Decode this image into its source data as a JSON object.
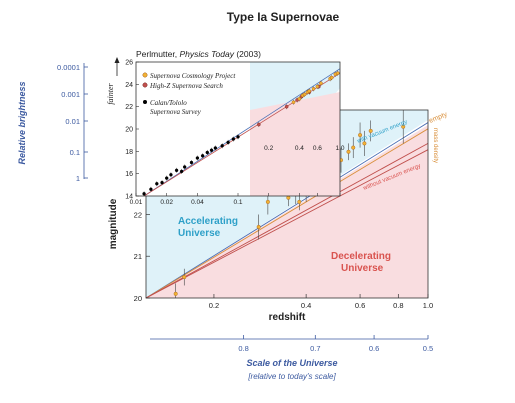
{
  "title": "Type Ia Supernovae",
  "colors": {
    "accelerating_fill": "#dff2f9",
    "decelerating_fill": "#f9dde0",
    "blue_line": "#4a6fb5",
    "red_line": "#c0504d",
    "orange_line": "#d98f3a",
    "label_blue": "#3c5aa0",
    "label_teal": "#2ea0c8",
    "label_red": "#d9534f",
    "point_fill": "#f2b233",
    "point_stroke": "#a05a20"
  },
  "left_scale": {
    "title": "Relative brightness",
    "ticks": [
      "0.0001",
      "0.001",
      "0.01",
      "0.1",
      "1"
    ]
  },
  "bottom_scale": {
    "title": "Scale of the Universe",
    "subtitle": "[relative to today's scale]",
    "ticks": [
      "0.8",
      "0.7",
      "0.6",
      "0.5"
    ]
  },
  "chart_data": [
    {
      "type": "scatter",
      "xlabel": "redshift",
      "ylabel": "magnitude",
      "xscale": "log",
      "xlim": [
        0.12,
        1.0
      ],
      "ylim": [
        20,
        24.5
      ],
      "xticks": [
        "0.2",
        "0.4",
        "0.6",
        "0.8",
        "1.0"
      ],
      "yticks": [
        "20",
        "21",
        "22"
      ],
      "region_labels": {
        "accelerating": [
          "Accelerating",
          "Universe"
        ],
        "decelerating": [
          "Decelerating",
          "Universe"
        ]
      },
      "line_labels": {
        "with": "with vacuum energy",
        "without": "without vacuum energy",
        "empty": "empty",
        "mass": "mass density"
      },
      "lines": [
        {
          "role": "with",
          "points": [
            [
              0.12,
              20.0
            ],
            [
              1.0,
              24.2
            ]
          ]
        },
        {
          "role": "empty",
          "points": [
            [
              0.12,
              20.0
            ],
            [
              1.0,
              24.05
            ]
          ]
        },
        {
          "role": "without",
          "points": [
            [
              0.12,
              20.0
            ],
            [
              1.0,
              23.7
            ]
          ]
        },
        {
          "role": "without2",
          "points": [
            [
              0.12,
              20.0
            ],
            [
              1.0,
              23.55
            ]
          ]
        }
      ],
      "series": [
        {
          "points": [
            [
              0.15,
              20.1,
              0.25
            ],
            [
              0.16,
              20.5,
              0.2
            ],
            [
              0.28,
              21.7,
              0.3
            ],
            [
              0.3,
              22.3,
              0.3
            ],
            [
              0.35,
              22.4,
              0.2
            ],
            [
              0.37,
              22.5,
              0.25
            ],
            [
              0.38,
              22.3,
              0.2
            ],
            [
              0.4,
              22.6,
              0.3
            ],
            [
              0.42,
              22.9,
              0.25
            ],
            [
              0.43,
              23.0,
              0.3
            ],
            [
              0.45,
              22.8,
              0.3
            ],
            [
              0.45,
              23.2,
              0.25
            ],
            [
              0.48,
              23.1,
              0.2
            ],
            [
              0.5,
              23.4,
              0.25
            ],
            [
              0.52,
              23.3,
              0.3
            ],
            [
              0.55,
              23.5,
              0.2
            ],
            [
              0.57,
              23.6,
              0.25
            ],
            [
              0.6,
              23.9,
              0.3
            ],
            [
              0.62,
              23.7,
              0.3
            ],
            [
              0.65,
              24.0,
              0.25
            ],
            [
              0.83,
              24.1,
              0.4
            ]
          ]
        }
      ]
    },
    {
      "type": "scatter",
      "title": "Perlmutter, Physics Today (2003)",
      "ylabel": "fainter",
      "xscale": "log",
      "xlim": [
        0.01,
        1.0
      ],
      "ylim": [
        14,
        26
      ],
      "xticks": [
        "0.01",
        "0.02",
        "0.04",
        "0.1",
        "0.2",
        "0.4",
        "0.6",
        "1.0"
      ],
      "yticks": [
        "14",
        "16",
        "18",
        "20",
        "22",
        "24",
        "26"
      ],
      "legend": [
        {
          "label": "Supernova Cosmology Project",
          "color": "#f2b233"
        },
        {
          "label": "High-Z Supernova Search",
          "color": "#c0504d"
        },
        {
          "label": "Calan/Tololo Supernova Survey",
          "color": "#000000"
        }
      ],
      "series": [
        {
          "name": "Calan/Tololo Supernova Survey",
          "points": [
            [
              0.012,
              14.2
            ],
            [
              0.014,
              14.6
            ],
            [
              0.016,
              15.1
            ],
            [
              0.018,
              15.2
            ],
            [
              0.02,
              15.6
            ],
            [
              0.022,
              15.9
            ],
            [
              0.025,
              16.3
            ],
            [
              0.028,
              16.2
            ],
            [
              0.03,
              16.6
            ],
            [
              0.035,
              17.0
            ],
            [
              0.04,
              17.4
            ],
            [
              0.045,
              17.6
            ],
            [
              0.05,
              17.9
            ],
            [
              0.055,
              18.1
            ],
            [
              0.06,
              18.3
            ],
            [
              0.07,
              18.5
            ],
            [
              0.08,
              18.8
            ],
            [
              0.09,
              19.1
            ],
            [
              0.1,
              19.3
            ]
          ]
        },
        {
          "name": "High-Z Supernova Search",
          "points": [
            [
              0.16,
              20.4
            ],
            [
              0.3,
              22.0
            ],
            [
              0.38,
              22.6
            ],
            [
              0.42,
              22.9
            ],
            [
              0.5,
              23.3
            ],
            [
              0.62,
              23.8
            ]
          ]
        },
        {
          "name": "Supernova Cosmology Project",
          "points": [
            [
              0.35,
              22.4
            ],
            [
              0.4,
              22.7
            ],
            [
              0.43,
              23.0
            ],
            [
              0.45,
              23.1
            ],
            [
              0.48,
              23.3
            ],
            [
              0.5,
              23.4
            ],
            [
              0.55,
              23.6
            ],
            [
              0.6,
              23.8
            ],
            [
              0.65,
              24.1
            ],
            [
              0.8,
              24.5
            ],
            [
              0.83,
              24.6
            ],
            [
              0.9,
              24.9
            ],
            [
              0.95,
              25.0
            ]
          ]
        }
      ]
    }
  ]
}
